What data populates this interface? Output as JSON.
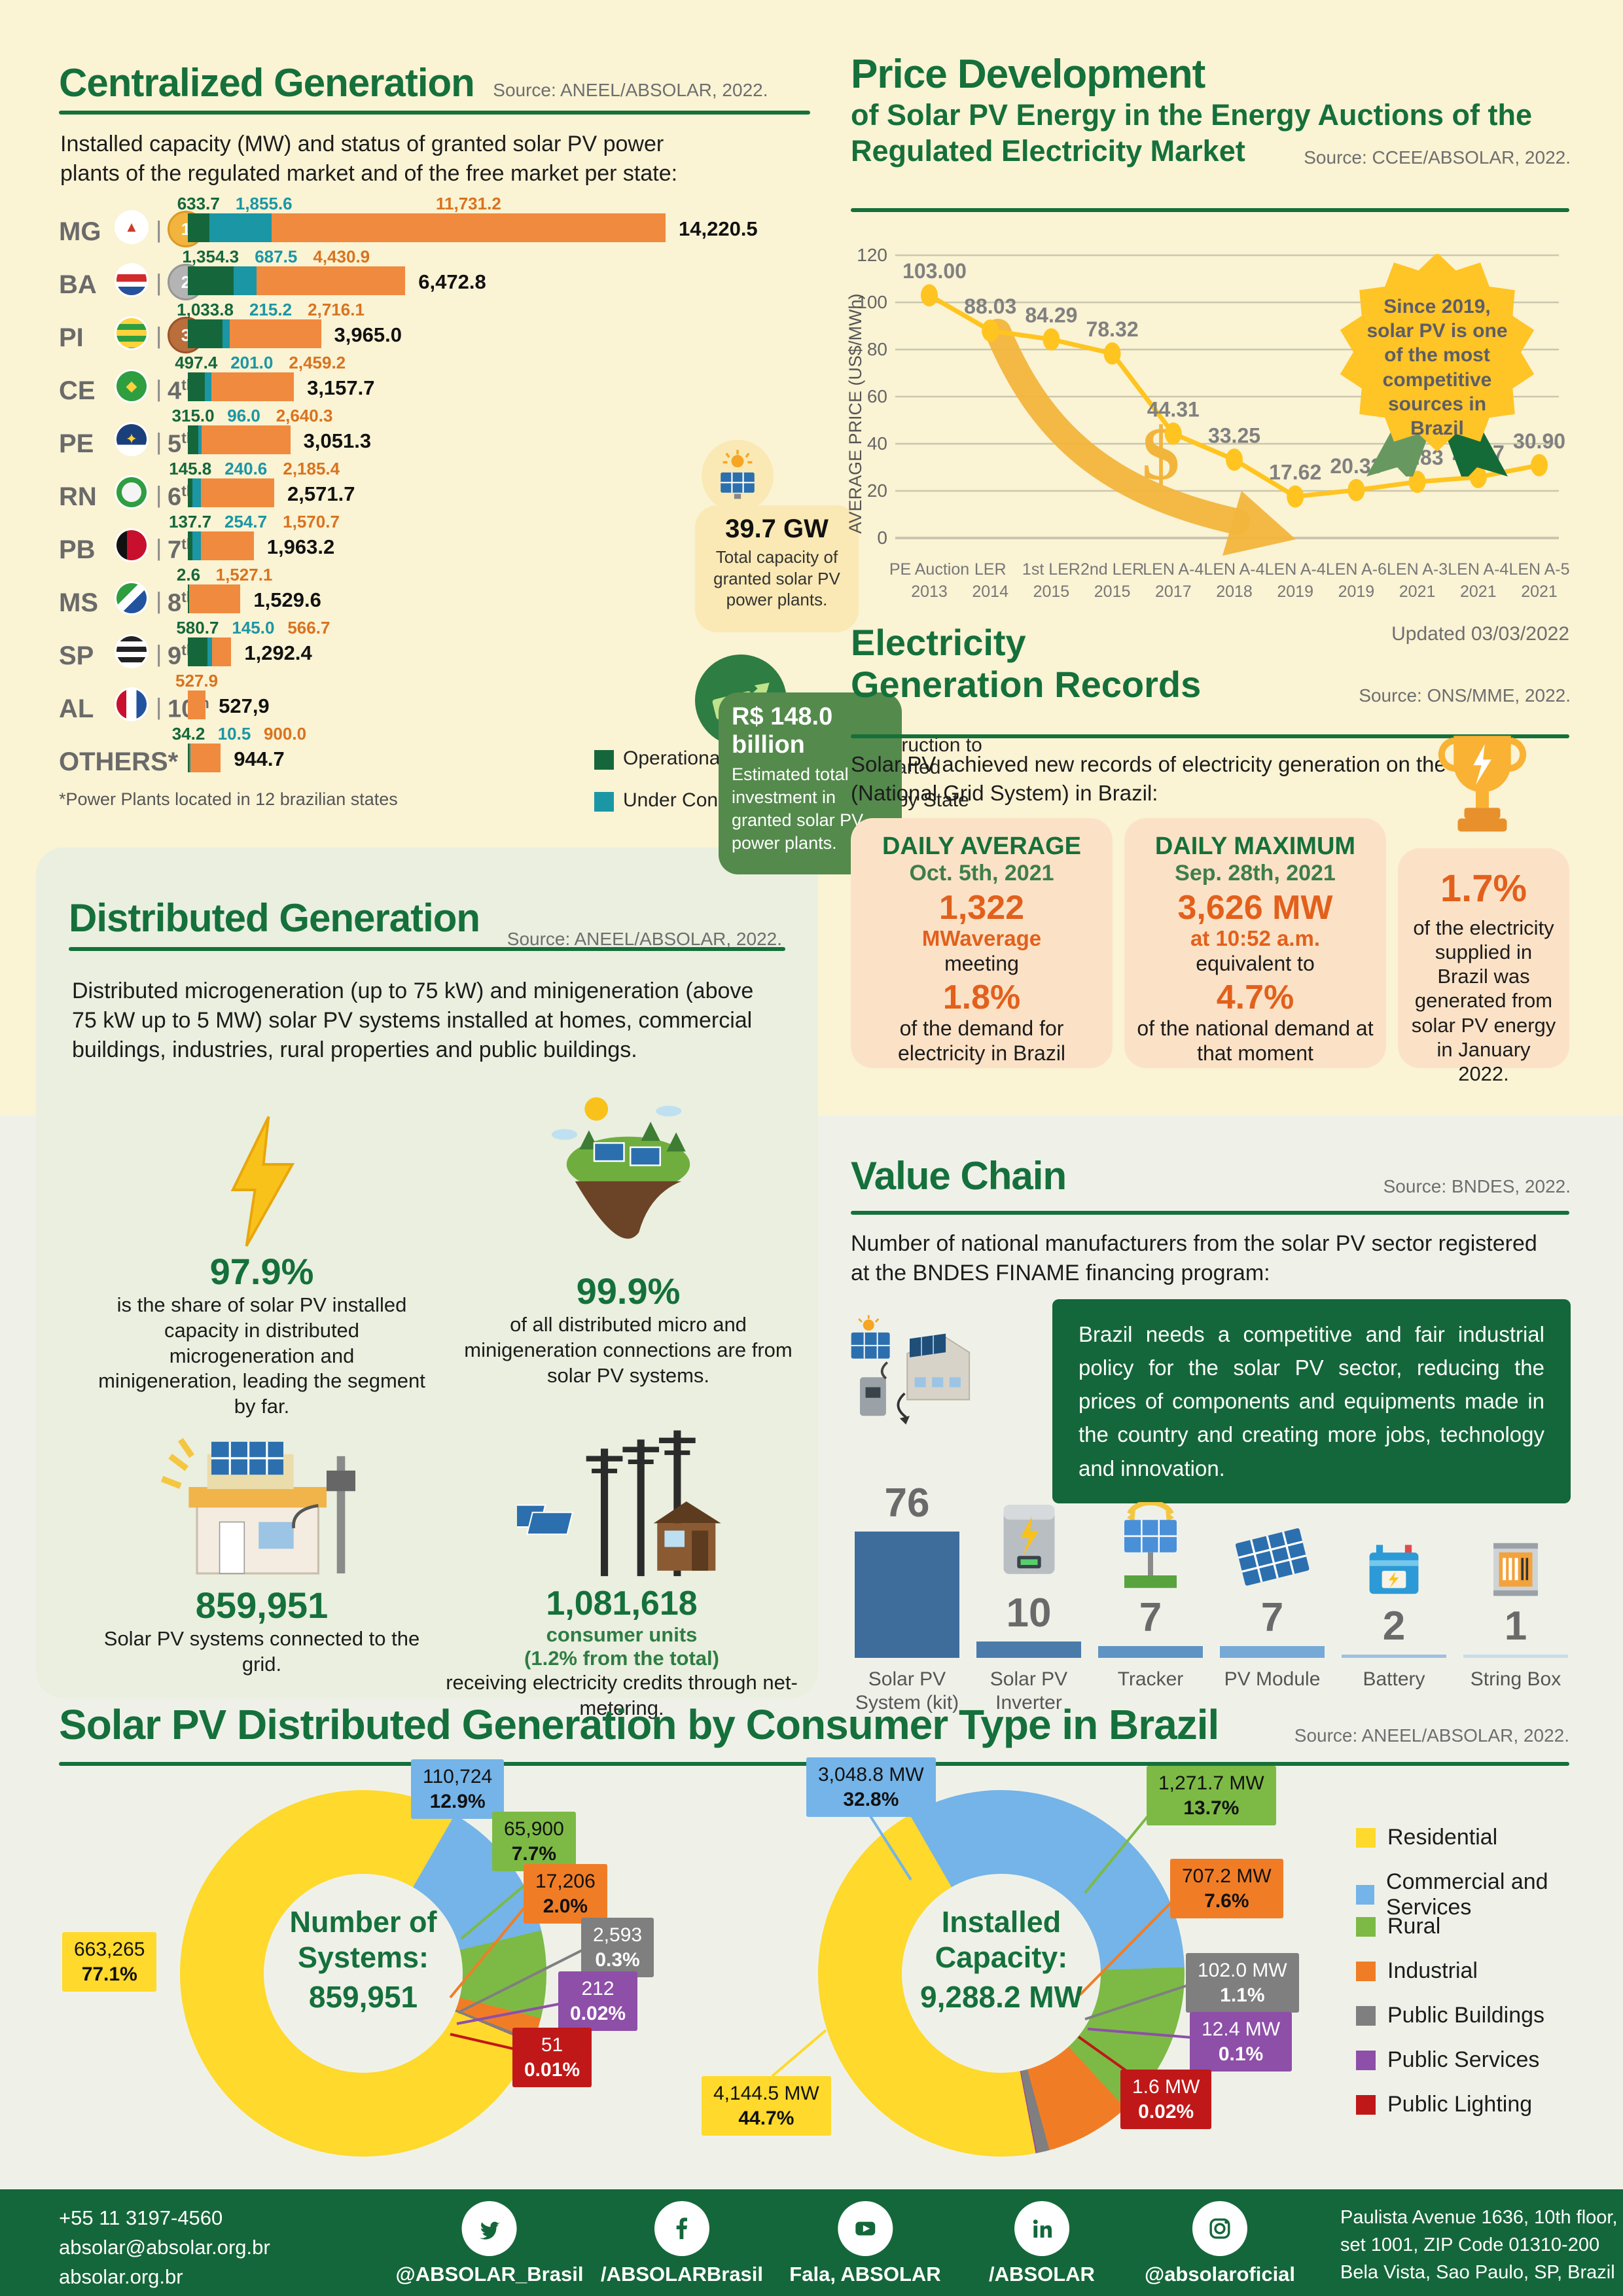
{
  "colors": {
    "cream_bg": "#FAF3D4",
    "light_bg": "#EFF1E9",
    "footer_green": "#14673A",
    "title_green": "#15703B",
    "operational": "#15673B",
    "under_construction": "#1B96A4",
    "to_be_started": "#F08A3F",
    "total_black": "#000000",
    "line_yellow": "#FFC41F",
    "orange_stat": "#E2601C",
    "card_peach": "#FBE2C6",
    "donut_yellow": "#FFD92B",
    "donut_blue": "#74B4E8",
    "donut_green": "#7CBA45",
    "donut_orange": "#F07D26",
    "donut_gray": "#7F7F7F",
    "donut_purple": "#8E4FA8",
    "donut_red": "#C01818"
  },
  "centralized": {
    "title": "Centralized Generation",
    "source": "Source: ANEEL/ABSOLAR, 2022.",
    "subtitle": "Installed capacity (MW) and status of granted solar PV power plants of the regulated market and of the free market per state:",
    "footnote": "*Power Plants located in 12 brazilian states",
    "legend": [
      {
        "label": "Operational",
        "color": "#15673B"
      },
      {
        "label": "Under Construction",
        "color": "#1B96A4"
      },
      {
        "label": "Construction to be Started",
        "color": "#F08A3F"
      },
      {
        "label": "Total by State",
        "color": "#000000"
      }
    ],
    "rows": [
      {
        "state": "MG",
        "rank": "1st",
        "medal": "gold",
        "operational": "633.7",
        "under_construction": "1,855.6",
        "to_be_started": "11,731.2",
        "total": "14,220.5"
      },
      {
        "state": "BA",
        "rank": "2nd",
        "medal": "silver",
        "operational": "1,354.3",
        "under_construction": "687.5",
        "to_be_started": "4,430.9",
        "total": "6,472.8"
      },
      {
        "state": "PI",
        "rank": "3rd",
        "medal": "bronze",
        "operational": "1,033.8",
        "under_construction": "215.2",
        "to_be_started": "2,716.1",
        "total": "3,965.0"
      },
      {
        "state": "CE",
        "rank": "4th",
        "medal": null,
        "operational": "497.4",
        "under_construction": "201.0",
        "to_be_started": "2,459.2",
        "total": "3,157.7"
      },
      {
        "state": "PE",
        "rank": "5th",
        "medal": null,
        "operational": "315.0",
        "under_construction": "96.0",
        "to_be_started": "2,640.3",
        "total": "3,051.3"
      },
      {
        "state": "RN",
        "rank": "6th",
        "medal": null,
        "operational": "145.8",
        "under_construction": "240.6",
        "to_be_started": "2,185.4",
        "total": "2,571.7"
      },
      {
        "state": "PB",
        "rank": "7th",
        "medal": null,
        "operational": "137.7",
        "under_construction": "254.7",
        "to_be_started": "1,570.7",
        "total": "1,963.2"
      },
      {
        "state": "MS",
        "rank": "8th",
        "medal": null,
        "operational": "2.6",
        "under_construction": null,
        "to_be_started": "1,527.1",
        "total": "1,529.6"
      },
      {
        "state": "SP",
        "rank": "9th",
        "medal": null,
        "operational": "580.7",
        "under_construction": "145.0",
        "to_be_started": "566.7",
        "total": "1,292.4"
      },
      {
        "state": "AL",
        "rank": "10th",
        "medal": null,
        "operational": null,
        "under_construction": null,
        "to_be_started": "527.9",
        "total": "527,9"
      },
      {
        "state": "OTHERS*",
        "rank": null,
        "medal": null,
        "operational": "34.2",
        "under_construction": "10.5",
        "to_be_started": "900.0",
        "total": "944.7"
      }
    ],
    "gw_badge": {
      "value": "39.7 GW",
      "label": "Total capacity of granted solar PV power plants."
    },
    "invest_badge": {
      "value": "R$ 148.0 billion",
      "label": "Estimated total investment in granted solar PV power plants."
    }
  },
  "price": {
    "title": "Price Development",
    "subtitle_line1": "of Solar PV Energy in the Energy Auctions of the",
    "subtitle_line2": "Regulated Electricity Market",
    "source": "Source: CCEE/ABSOLAR, 2022.",
    "ylabel": "AVERAGE PRICE (US$/MWh)",
    "updated": "Updated 03/03/2022",
    "badge": "Since 2019, solar PV is one of the most competitive sources in Brazil",
    "dollar_glyph": "$"
  },
  "records": {
    "title_line1": "Electricity",
    "title_line2": "Generation Records",
    "source": "Source: ONS/MME, 2022.",
    "intro": "Solar PV achieved new records of electricity generation on the SIN (National Grid System) in Brazil:",
    "card1": {
      "title": "DAILY AVERAGE",
      "date": "Oct. 5th, 2021",
      "big": "1,322",
      "unit": "MWaverage",
      "mid": "meeting",
      "pct": "1.8%",
      "caption": "of the demand for electricity in Brazil"
    },
    "card2": {
      "title": "DAILY MAXIMUM",
      "date": "Sep. 28th, 2021",
      "big": "3,626 MW",
      "unit": "at 10:52 a.m.",
      "mid": "equivalent to",
      "pct": "4.7%",
      "caption": "of the national demand at that moment"
    },
    "card3": {
      "pct": "1.7%",
      "caption": "of the electricity supplied in Brazil was generated from solar PV energy in January 2022."
    }
  },
  "distributed": {
    "title": "Distributed Generation",
    "source": "Source: ANEEL/ABSOLAR, 2022.",
    "paragraph": "Distributed microgeneration (up to 75 kW) and minigeneration (above 75 kW up to 5 MW) solar PV systems installed at homes, commercial buildings, industries, rural properties and public buildings.",
    "stat1": {
      "value": "97.9%",
      "caption": "is the share of solar PV installed capacity in distributed microgeneration and minigeneration, leading the segment by far."
    },
    "stat2": {
      "value": "99.9%",
      "caption": "of all distributed micro and minigeneration connections are from solar PV systems."
    },
    "stat3": {
      "value": "859,951",
      "caption": "Solar PV systems connected to the grid."
    },
    "stat4": {
      "value": "1,081,618",
      "sub1": "consumer units",
      "sub2": "(1.2% from the total)",
      "caption": "receiving electricity credits through net-metering."
    }
  },
  "value_chain": {
    "title": "Value Chain",
    "source": "Source: BNDES, 2022.",
    "paragraph": "Number of national manufacturers from the solar PV sector registered at the BNDES FINAME financing program:",
    "quote": "Brazil needs a competitive and fair industrial policy for the solar PV sector, reducing the prices of components and equipments made in the country and creating more jobs, technology and innovation.",
    "items": [
      {
        "count": "76",
        "value": 76,
        "label": "Solar PV System (kit)",
        "icon": "solar-kit-icon"
      },
      {
        "count": "10",
        "value": 10,
        "label": "Solar PV Inverter",
        "icon": "inverter-icon"
      },
      {
        "count": "7",
        "value": 7,
        "label": "Tracker",
        "icon": "tracker-icon"
      },
      {
        "count": "7",
        "value": 7,
        "label": "PV Module",
        "icon": "pv-module-icon"
      },
      {
        "count": "2",
        "value": 2,
        "label": "Battery",
        "icon": "battery-icon"
      },
      {
        "count": "1",
        "value": 1,
        "label": "String Box",
        "icon": "string-box-icon"
      }
    ],
    "bar_colors": [
      "#3E6D9C",
      "#4A7BAB",
      "#5F93C4",
      "#77A9D6",
      "#9FC0E0",
      "#C9DCEA"
    ]
  },
  "consumer": {
    "title": "Solar PV Distributed Generation by Consumer Type in Brazil",
    "source": "Source: ANEEL/ABSOLAR, 2022.",
    "legend": [
      {
        "label": "Residential",
        "color": "#FFD92B"
      },
      {
        "label": "Commercial and Services",
        "color": "#74B4E8"
      },
      {
        "label": "Rural",
        "color": "#7CBA45"
      },
      {
        "label": "Industrial",
        "color": "#F07D26"
      },
      {
        "label": "Public Buildings",
        "color": "#7F7F7F"
      },
      {
        "label": "Public Services",
        "color": "#8E4FA8"
      },
      {
        "label": "Public Lighting",
        "color": "#C01818"
      }
    ],
    "systems": {
      "center_line1": "Number of",
      "center_line2": "Systems:",
      "total": "859,951",
      "slices": [
        {
          "label": "Residential",
          "value": "663,265",
          "pct": "77.1%",
          "num": 77.1,
          "color": "#FFD92B"
        },
        {
          "label": "Commercial and Services",
          "value": "110,724",
          "pct": "12.9%",
          "num": 12.9,
          "color": "#74B4E8"
        },
        {
          "label": "Rural",
          "value": "65,900",
          "pct": "7.7%",
          "num": 7.7,
          "color": "#7CBA45"
        },
        {
          "label": "Industrial",
          "value": "17,206",
          "pct": "2.0%",
          "num": 2.0,
          "color": "#F07D26"
        },
        {
          "label": "Public Buildings",
          "value": "2,593",
          "pct": "0.3%",
          "num": 0.3,
          "color": "#7F7F7F"
        },
        {
          "label": "Public Services",
          "value": "212",
          "pct": "0.02%",
          "num": 0.02,
          "color": "#8E4FA8"
        },
        {
          "label": "Public Lighting",
          "value": "51",
          "pct": "0.01%",
          "num": 0.01,
          "color": "#C01818"
        }
      ]
    },
    "capacity": {
      "center_line1": "Installed",
      "center_line2": "Capacity:",
      "total": "9,288.2 MW",
      "slices": [
        {
          "label": "Residential",
          "value": "4,144.5 MW",
          "pct": "44.7%",
          "num": 44.7,
          "color": "#FFD92B"
        },
        {
          "label": "Commercial and Services",
          "value": "3,048.8 MW",
          "pct": "32.8%",
          "num": 32.8,
          "color": "#74B4E8"
        },
        {
          "label": "Rural",
          "value": "1,271.7 MW",
          "pct": "13.7%",
          "num": 13.7,
          "color": "#7CBA45"
        },
        {
          "label": "Industrial",
          "value": "707.2 MW",
          "pct": "7.6%",
          "num": 7.6,
          "color": "#F07D26"
        },
        {
          "label": "Public Buildings",
          "value": "102.0 MW",
          "pct": "1.1%",
          "num": 1.1,
          "color": "#7F7F7F"
        },
        {
          "label": "Public Services",
          "value": "12.4 MW",
          "pct": "0.1%",
          "num": 0.1,
          "color": "#8E4FA8"
        },
        {
          "label": "Public Lighting",
          "value": "1.6 MW",
          "pct": "0.02%",
          "num": 0.02,
          "color": "#C01818"
        }
      ]
    }
  },
  "footer": {
    "phone": "+55 11 3197-4560",
    "email": "absolar@absolar.org.br",
    "site": "absolar.org.br",
    "socials": [
      {
        "icon": "twitter-icon",
        "handle": "@ABSOLAR_Brasil"
      },
      {
        "icon": "facebook-icon",
        "handle": "/ABSOLARBrasil"
      },
      {
        "icon": "youtube-icon",
        "handle": "Fala, ABSOLAR"
      },
      {
        "icon": "linkedin-icon",
        "handle": "/ABSOLAR"
      },
      {
        "icon": "instagram-icon",
        "handle": "@absolaroficial"
      }
    ],
    "address_line1": "Paulista Avenue 1636, 10th floor,",
    "address_line2": "set 1001, ZIP Code 01310-200",
    "address_line3": "Bela Vista, Sao Paulo, SP, Brazil"
  },
  "chart_data": [
    {
      "type": "bar",
      "variant": "horizontal-stacked",
      "title": "Installed capacity (MW) of granted solar PV power plants per state",
      "categories": [
        "MG",
        "BA",
        "PI",
        "CE",
        "PE",
        "RN",
        "PB",
        "MS",
        "SP",
        "AL",
        "OTHERS*"
      ],
      "series": [
        {
          "name": "Operational",
          "values": [
            633.7,
            1354.3,
            1033.8,
            497.4,
            315.0,
            145.8,
            137.7,
            2.6,
            580.7,
            0,
            34.2
          ]
        },
        {
          "name": "Under Construction",
          "values": [
            1855.6,
            687.5,
            215.2,
            201.0,
            96.0,
            240.6,
            254.7,
            0,
            145.0,
            0,
            10.5
          ]
        },
        {
          "name": "Construction to be Started",
          "values": [
            11731.2,
            4430.9,
            2716.1,
            2459.2,
            2640.3,
            2185.4,
            1570.7,
            1527.1,
            566.7,
            527.9,
            900.0
          ]
        }
      ],
      "totals": [
        14220.5,
        6472.8,
        3965.0,
        3157.7,
        3051.3,
        2571.7,
        1963.2,
        1529.6,
        1292.4,
        527.9,
        944.7
      ]
    },
    {
      "type": "line",
      "title": "Price Development of Solar PV Energy in the Energy Auctions of the Regulated Electricity Market",
      "x": [
        "PE Auction 2013",
        "LER 2014",
        "1st LER 2015",
        "2nd LER 2015",
        "LEN A-4 2017",
        "LEN A-4 2018",
        "LEN A-4 2019",
        "LEN A-6 2019",
        "LEN A-3 2021",
        "LEN A-4 2021",
        "LEN A-5 2021"
      ],
      "values": [
        103.0,
        88.03,
        84.29,
        78.32,
        44.31,
        33.25,
        17.62,
        20.33,
        23.83,
        25.87,
        30.9
      ],
      "ylabel": "AVERAGE PRICE (US$/MWh)",
      "ylim": [
        0,
        120
      ],
      "yticks": [
        0,
        20,
        40,
        60,
        80,
        100,
        120
      ],
      "grid": true,
      "legend_position": "none"
    },
    {
      "type": "bar",
      "title": "Number of national manufacturers registered at BNDES FINAME",
      "categories": [
        "Solar PV System (kit)",
        "Solar PV Inverter",
        "Tracker",
        "PV Module",
        "Battery",
        "String Box"
      ],
      "values": [
        76,
        10,
        7,
        7,
        2,
        1
      ]
    },
    {
      "type": "pie",
      "title": "Number of Systems: 859,951",
      "labels": [
        "Residential",
        "Commercial and Services",
        "Rural",
        "Industrial",
        "Public Buildings",
        "Public Services",
        "Public Lighting"
      ],
      "values": [
        77.1,
        12.9,
        7.7,
        2.0,
        0.3,
        0.02,
        0.01
      ],
      "counts": [
        "663,265",
        "110,724",
        "65,900",
        "17,206",
        "2,593",
        "212",
        "51"
      ]
    },
    {
      "type": "pie",
      "title": "Installed Capacity: 9,288.2 MW",
      "labels": [
        "Residential",
        "Commercial and Services",
        "Rural",
        "Industrial",
        "Public Buildings",
        "Public Services",
        "Public Lighting"
      ],
      "values": [
        44.7,
        32.8,
        13.7,
        7.6,
        1.1,
        0.1,
        0.02
      ],
      "mw": [
        "4,144.5",
        "3,048.8",
        "1,271.7",
        "707.2",
        "102.0",
        "12.4",
        "1.6"
      ]
    }
  ]
}
